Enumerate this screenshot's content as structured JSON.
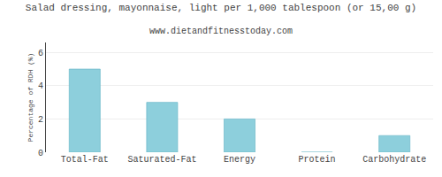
{
  "chart_data": {
    "type": "bar",
    "title": "Salad dressing, mayonnaise, light per 1,000 tablespoon (or 15,00 g)",
    "subtitle": "www.dietandfitnesstoday.com",
    "categories": [
      "Total-Fat",
      "Saturated-Fat",
      "Energy",
      "Protein",
      "Carbohydrate"
    ],
    "values": [
      5.0,
      3.0,
      2.0,
      0.0,
      1.0
    ],
    "color": "#8DCFDC",
    "ylabel": "Percentage of RDH (%)",
    "ylim": [
      0,
      6.6
    ],
    "yticks": [
      0,
      2,
      4,
      6
    ],
    "grid": true
  }
}
